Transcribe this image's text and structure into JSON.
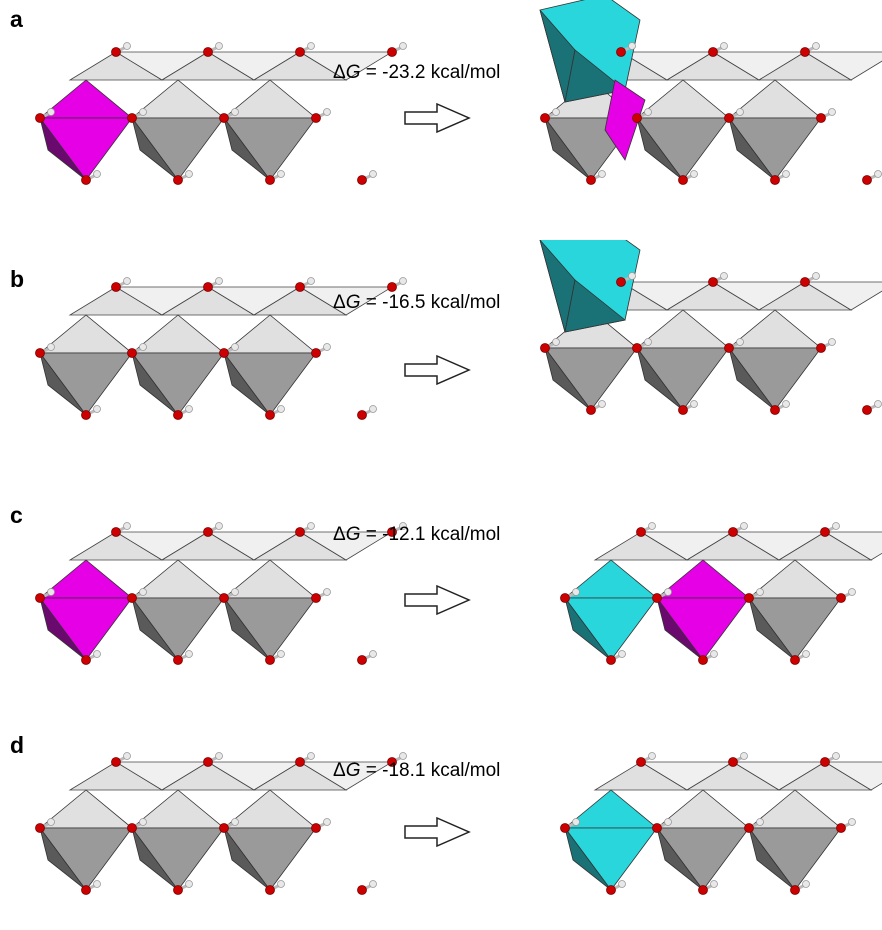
{
  "panels": [
    {
      "label": "a",
      "delta": "Δ",
      "G": "G",
      "energy": "= -23.2 kcal/mol"
    },
    {
      "label": "b",
      "delta": "Δ",
      "G": "G",
      "energy": "= -16.5 kcal/mol"
    },
    {
      "label": "c",
      "delta": "Δ",
      "G": "G",
      "energy": "= -12.1 kcal/mol"
    },
    {
      "label": "d",
      "delta": "Δ",
      "G": "G",
      "energy": "= -18.1 kcal/mol"
    }
  ],
  "colors": {
    "top_face": "#e0e0e0",
    "front_face": "#9a9a9a",
    "dark_face": "#5a5a5a",
    "magenta": "#e600e6",
    "magenta_dark": "#6a0a6e",
    "cyan": "#28d6dc",
    "cyan_dark": "#1a7276",
    "oxygen": "#cc0000",
    "hydrogen": "#e8e8e8"
  }
}
